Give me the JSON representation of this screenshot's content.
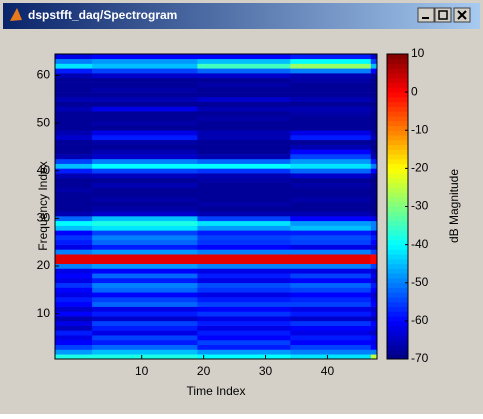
{
  "window": {
    "title": "dspstfft_daq/Spectrogram"
  },
  "chart_data": {
    "type": "heatmap",
    "xlabel": "Time Index",
    "ylabel": "Frequency Index",
    "colorbar_label": "dB Magnitude",
    "colormap": "jet",
    "clim": [
      -70,
      10
    ],
    "xlim": [
      -4,
      48
    ],
    "ylim": [
      0.5,
      64.5
    ],
    "xticks": [
      10,
      20,
      30,
      40
    ],
    "yticks": [
      10,
      20,
      30,
      40,
      50,
      60
    ],
    "cticks": [
      -70,
      -60,
      -50,
      -40,
      -30,
      -20,
      -10,
      0,
      10
    ],
    "x_edges": [
      -4,
      2,
      19,
      34,
      47,
      48
    ],
    "y_edges": [
      0.5,
      1.5,
      2.5,
      3.5,
      4.5,
      5.5,
      6.5,
      7.5,
      8.5,
      9.5,
      10.5,
      11.5,
      12.5,
      13.5,
      14.5,
      15.5,
      16.5,
      17.5,
      18.5,
      19.5,
      20.5,
      21.5,
      22.5,
      23.5,
      24.5,
      25.5,
      26.5,
      27.5,
      28.5,
      29.5,
      30.5,
      31.5,
      32.5,
      33.5,
      34.5,
      35.5,
      36.5,
      37.5,
      38.5,
      39.5,
      40.5,
      41.5,
      42.5,
      43.5,
      44.5,
      45.5,
      46.5,
      47.5,
      48.5,
      49.5,
      50.5,
      51.5,
      52.5,
      53.5,
      54.5,
      55.5,
      56.5,
      57.5,
      58.5,
      59.5,
      60.5,
      61.5,
      62.5,
      63.5,
      64.5
    ],
    "z": [
      [
        -38,
        -38,
        -40,
        -42,
        -25
      ],
      [
        -48,
        -45,
        -48,
        -50,
        -50
      ],
      [
        -55,
        -52,
        -58,
        -55,
        -60
      ],
      [
        -60,
        -58,
        -55,
        -60,
        -62
      ],
      [
        -62,
        -55,
        -60,
        -58,
        -60
      ],
      [
        -58,
        -62,
        -58,
        -62,
        -65
      ],
      [
        -65,
        -58,
        -62,
        -60,
        -62
      ],
      [
        -62,
        -55,
        -58,
        -56,
        -60
      ],
      [
        -66,
        -64,
        -62,
        -64,
        -66
      ],
      [
        -60,
        -58,
        -56,
        -58,
        -62
      ],
      [
        -64,
        -62,
        -60,
        -62,
        -64
      ],
      [
        -60,
        -52,
        -55,
        -55,
        -60
      ],
      [
        -58,
        -55,
        -58,
        -57,
        -62
      ],
      [
        -62,
        -60,
        -62,
        -60,
        -64
      ],
      [
        -60,
        -52,
        -56,
        -55,
        -60
      ],
      [
        -56,
        -50,
        -54,
        -52,
        -58
      ],
      [
        -62,
        -58,
        -62,
        -60,
        -64
      ],
      [
        -60,
        -52,
        -58,
        -55,
        -62
      ],
      [
        -62,
        -60,
        -62,
        -62,
        -64
      ],
      [
        -50,
        -48,
        -50,
        -50,
        -55
      ],
      [
        2,
        2,
        2,
        2,
        0
      ],
      [
        2,
        2,
        2,
        2,
        0
      ],
      [
        -50,
        -48,
        -50,
        -50,
        -55
      ],
      [
        -62,
        -58,
        -60,
        -62,
        -64
      ],
      [
        -58,
        -52,
        -56,
        -55,
        -60
      ],
      [
        -56,
        -50,
        -55,
        -54,
        -58
      ],
      [
        -60,
        -55,
        -58,
        -58,
        -62
      ],
      [
        -45,
        -42,
        -48,
        -45,
        -50
      ],
      [
        -40,
        -38,
        -42,
        -48,
        -50
      ],
      [
        -52,
        -45,
        -55,
        -60,
        -62
      ],
      [
        -66,
        -64,
        -66,
        -66,
        -68
      ],
      [
        -68,
        -67,
        -68,
        -68,
        -69
      ],
      [
        -68,
        -68,
        -67,
        -68,
        -69
      ],
      [
        -68,
        -67,
        -68,
        -67,
        -69
      ],
      [
        -68,
        -68,
        -68,
        -68,
        -69
      ],
      [
        -67,
        -68,
        -68,
        -68,
        -69
      ],
      [
        -68,
        -66,
        -68,
        -67,
        -69
      ],
      [
        -68,
        -68,
        -67,
        -68,
        -69
      ],
      [
        -66,
        -65,
        -66,
        -64,
        -68
      ],
      [
        -58,
        -55,
        -56,
        -52,
        -60
      ],
      [
        -45,
        -40,
        -40,
        -42,
        -50
      ],
      [
        -55,
        -50,
        -52,
        -48,
        -58
      ],
      [
        -66,
        -64,
        -66,
        -55,
        -66
      ],
      [
        -68,
        -66,
        -68,
        -60,
        -68
      ],
      [
        -68,
        -68,
        -68,
        -66,
        -69
      ],
      [
        -68,
        -67,
        -68,
        -68,
        -69
      ],
      [
        -64,
        -58,
        -66,
        -58,
        -66
      ],
      [
        -66,
        -62,
        -66,
        -62,
        -68
      ],
      [
        -68,
        -68,
        -68,
        -68,
        -69
      ],
      [
        -68,
        -67,
        -68,
        -68,
        -69
      ],
      [
        -68,
        -68,
        -67,
        -68,
        -69
      ],
      [
        -68,
        -68,
        -68,
        -67,
        -69
      ],
      [
        -66,
        -62,
        -66,
        -66,
        -68
      ],
      [
        -68,
        -68,
        -68,
        -68,
        -69
      ],
      [
        -66,
        -66,
        -64,
        -66,
        -68
      ],
      [
        -68,
        -68,
        -68,
        -68,
        -69
      ],
      [
        -68,
        -67,
        -68,
        -68,
        -69
      ],
      [
        -68,
        -68,
        -67,
        -68,
        -69
      ],
      [
        -68,
        -68,
        -68,
        -67,
        -69
      ],
      [
        -66,
        -64,
        -64,
        -66,
        -68
      ],
      [
        -58,
        -55,
        -52,
        -50,
        -60
      ],
      [
        -42,
        -45,
        -35,
        -28,
        -45
      ],
      [
        -50,
        -48,
        -45,
        -40,
        -55
      ],
      [
        -62,
        -60,
        -60,
        -58,
        -64
      ]
    ]
  }
}
